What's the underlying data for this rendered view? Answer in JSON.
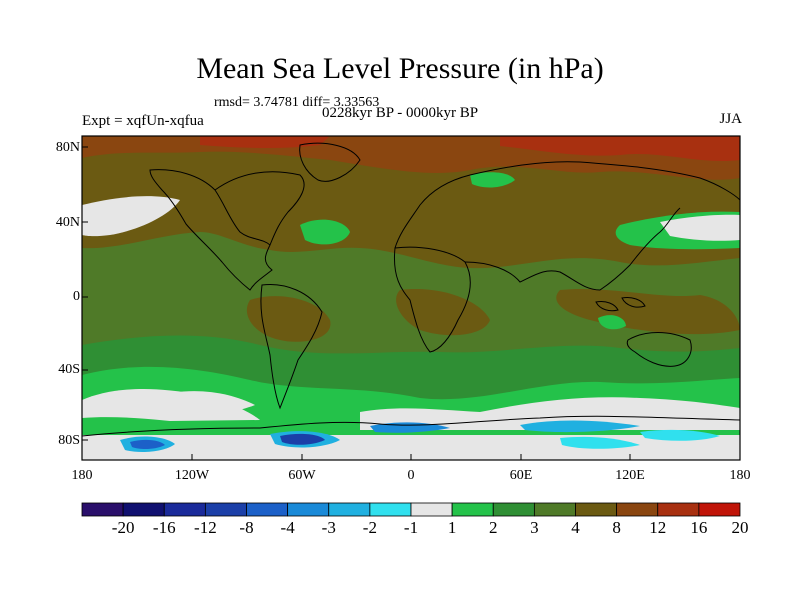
{
  "title": "Mean Sea Level Pressure (in hPa)",
  "stats": "rmsd= 3.74781 diff= 3.33563",
  "period": "0228kyr BP - 0000kyr BP",
  "experiment": "Expt = xqfUn-xqfua",
  "season": "JJA",
  "y_ticks": [
    "80N",
    "40N",
    "0",
    "40S",
    "80S"
  ],
  "x_ticks": [
    "180",
    "120W",
    "60W",
    "0",
    "60E",
    "120E",
    "180"
  ],
  "colorbar": {
    "labels": [
      "-20",
      "-16",
      "-12",
      "-8",
      "-4",
      "-3",
      "-2",
      "-1",
      "1",
      "2",
      "3",
      "4",
      "8",
      "12",
      "16",
      "20"
    ],
    "colors": [
      "#2a0f6b",
      "#101070",
      "#1a2a9a",
      "#1b3fa8",
      "#1c60c8",
      "#1a8ad8",
      "#20b0e0",
      "#30e0ee",
      "#e6e6e6",
      "#24c24a",
      "#2f8f34",
      "#4f7a28",
      "#6b5a12",
      "#8a4610",
      "#a83010",
      "#c01408"
    ]
  },
  "colors": {
    "moderate_positive": "#4f7a28",
    "strong_positive": "#6b5a12",
    "land_outline": "#000000"
  }
}
